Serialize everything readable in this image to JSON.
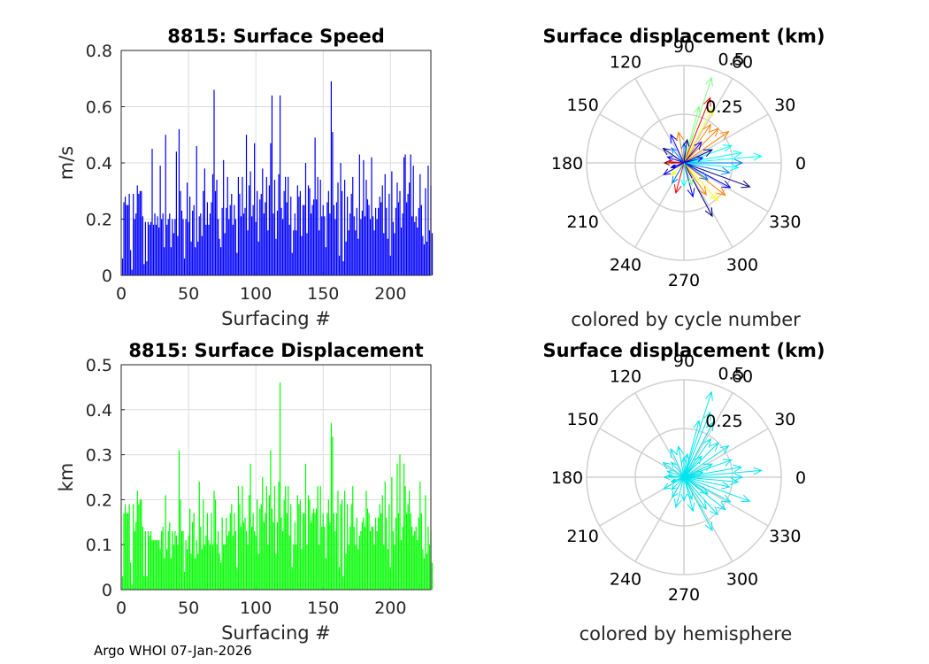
{
  "figure": {
    "footer": "Argo WHOI 07-Jan-2026"
  },
  "chart_data": [
    {
      "id": "speed",
      "type": "bar",
      "title": "8815: Surface Speed",
      "xlabel": "Surfacing #",
      "ylabel": "m/s",
      "xlim": [
        0,
        230
      ],
      "ylim": [
        0,
        0.8
      ],
      "xticks": [
        "0",
        "50",
        "100",
        "150",
        "200"
      ],
      "yticks": [
        "0",
        "0.2",
        "0.4",
        "0.6",
        "0.8"
      ],
      "color": "#0000ff",
      "grid": true,
      "values": [
        0.06,
        0.26,
        0.28,
        0.25,
        0.25,
        0.29,
        0.09,
        0.02,
        0.29,
        0.2,
        0.22,
        0.32,
        0.29,
        0.3,
        0.3,
        0.21,
        0.04,
        0.19,
        0.05,
        0.19,
        0.18,
        0.19,
        0.45,
        0.18,
        0.22,
        0.18,
        0.21,
        0.17,
        0.39,
        0.2,
        0.22,
        0.1,
        0.5,
        0.18,
        0.2,
        0.22,
        0.1,
        0.2,
        0.15,
        0.2,
        0.44,
        0.14,
        0.52,
        0.3,
        0.23,
        0.2,
        0.06,
        0.2,
        0.33,
        0.19,
        0.28,
        0.12,
        0.23,
        0.25,
        0.1,
        0.46,
        0.12,
        0.21,
        0.22,
        0.14,
        0.3,
        0.38,
        0.18,
        0.26,
        0.18,
        0.22,
        0.26,
        0.36,
        0.66,
        0.3,
        0.34,
        0.2,
        0.13,
        0.1,
        0.24,
        0.41,
        0.15,
        0.24,
        0.35,
        0.2,
        0.25,
        0.29,
        0.18,
        0.25,
        0.2,
        0.08,
        0.35,
        0.29,
        0.21,
        0.35,
        0.22,
        0.24,
        0.5,
        0.16,
        0.32,
        0.37,
        0.21,
        0.25,
        0.47,
        0.19,
        0.3,
        0.12,
        0.27,
        0.29,
        0.38,
        0.22,
        0.26,
        0.35,
        0.16,
        0.32,
        0.47,
        0.64,
        0.22,
        0.34,
        0.13,
        0.23,
        0.36,
        0.64,
        0.24,
        0.2,
        0.3,
        0.35,
        0.26,
        0.35,
        0.18,
        0.28,
        0.08,
        0.16,
        0.22,
        0.16,
        0.32,
        0.28,
        0.3,
        0.14,
        0.25,
        0.25,
        0.4,
        0.15,
        0.32,
        0.31,
        0.22,
        0.25,
        0.27,
        0.49,
        0.27,
        0.35,
        0.16,
        0.34,
        0.21,
        0.25,
        0.21,
        0.1,
        0.26,
        0.3,
        0.22,
        0.69,
        0.51,
        0.25,
        0.2,
        0.26,
        0.33,
        0.07,
        0.4,
        0.3,
        0.05,
        0.34,
        0.12,
        0.28,
        0.16,
        0.22,
        0.29,
        0.35,
        0.21,
        0.16,
        0.24,
        0.13,
        0.43,
        0.2,
        0.23,
        0.41,
        0.21,
        0.34,
        0.27,
        0.25,
        0.2,
        0.42,
        0.21,
        0.16,
        0.24,
        0.2,
        0.24,
        0.28,
        0.26,
        0.32,
        0.15,
        0.36,
        0.24,
        0.13,
        0.29,
        0.07,
        0.37,
        0.19,
        0.15,
        0.24,
        0.33,
        0.26,
        0.3,
        0.17,
        0.22,
        0.42,
        0.43,
        0.26,
        0.29,
        0.33,
        0.43,
        0.21,
        0.39,
        0.19,
        0.21,
        0.17,
        0.24,
        0.36,
        0.25,
        0.14,
        0.11,
        0.31,
        0.12,
        0.39,
        0.16,
        0.32,
        0.15
      ]
    },
    {
      "id": "displacement",
      "type": "bar",
      "title": "8815: Surface Displacement",
      "xlabel": "Surfacing #",
      "ylabel": "km",
      "xlim": [
        0,
        230
      ],
      "ylim": [
        0,
        0.5
      ],
      "xticks": [
        "0",
        "50",
        "100",
        "150",
        "200"
      ],
      "yticks": [
        "0",
        "0.1",
        "0.2",
        "0.3",
        "0.4",
        "0.5"
      ],
      "color": "#00ff00",
      "grid": true,
      "values": [
        0.03,
        0.17,
        0.19,
        0.17,
        0.17,
        0.19,
        0.06,
        0.01,
        0.19,
        0.13,
        0.15,
        0.22,
        0.19,
        0.2,
        0.2,
        0.14,
        0.03,
        0.13,
        0.03,
        0.13,
        0.12,
        0.13,
        0.11,
        0.11,
        0.11,
        0.11,
        0.11,
        0.11,
        0.09,
        0.13,
        0.14,
        0.07,
        0.21,
        0.09,
        0.13,
        0.15,
        0.07,
        0.13,
        0.1,
        0.13,
        0.12,
        0.1,
        0.31,
        0.2,
        0.13,
        0.13,
        0.04,
        0.11,
        0.09,
        0.12,
        0.18,
        0.08,
        0.15,
        0.17,
        0.07,
        0.11,
        0.08,
        0.24,
        0.14,
        0.09,
        0.2,
        0.1,
        0.12,
        0.17,
        0.11,
        0.1,
        0.17,
        0.1,
        0.22,
        0.2,
        0.1,
        0.13,
        0.08,
        0.06,
        0.16,
        0.1,
        0.1,
        0.16,
        0.12,
        0.13,
        0.17,
        0.19,
        0.12,
        0.17,
        0.13,
        0.05,
        0.23,
        0.19,
        0.14,
        0.23,
        0.15,
        0.16,
        0.13,
        0.1,
        0.21,
        0.28,
        0.14,
        0.17,
        0.13,
        0.12,
        0.2,
        0.08,
        0.18,
        0.19,
        0.25,
        0.15,
        0.17,
        0.23,
        0.1,
        0.21,
        0.31,
        0.18,
        0.15,
        0.23,
        0.08,
        0.15,
        0.24,
        0.46,
        0.16,
        0.13,
        0.2,
        0.23,
        0.17,
        0.23,
        0.12,
        0.19,
        0.05,
        0.1,
        0.15,
        0.1,
        0.21,
        0.19,
        0.2,
        0.09,
        0.17,
        0.17,
        0.28,
        0.1,
        0.21,
        0.2,
        0.15,
        0.17,
        0.18,
        0.17,
        0.18,
        0.23,
        0.1,
        0.23,
        0.14,
        0.17,
        0.14,
        0.07,
        0.17,
        0.2,
        0.15,
        0.37,
        0.34,
        0.17,
        0.13,
        0.17,
        0.22,
        0.05,
        0.19,
        0.2,
        0.03,
        0.22,
        0.08,
        0.19,
        0.1,
        0.14,
        0.19,
        0.23,
        0.14,
        0.1,
        0.16,
        0.09,
        0.12,
        0.13,
        0.15,
        0.16,
        0.14,
        0.22,
        0.18,
        0.17,
        0.13,
        0.14,
        0.14,
        0.1,
        0.16,
        0.13,
        0.16,
        0.19,
        0.17,
        0.21,
        0.1,
        0.24,
        0.16,
        0.09,
        0.19,
        0.05,
        0.25,
        0.13,
        0.1,
        0.16,
        0.28,
        0.17,
        0.3,
        0.11,
        0.14,
        0.28,
        0.23,
        0.17,
        0.19,
        0.22,
        0.17,
        0.14,
        0.12,
        0.13,
        0.14,
        0.11,
        0.16,
        0.24,
        0.17,
        0.09,
        0.07,
        0.21,
        0.08,
        0.14,
        0.1,
        0.13,
        0.06
      ]
    },
    {
      "id": "polar_cycle",
      "type": "polar",
      "title": "Surface displacement (km)",
      "subtitle": "colored by cycle number",
      "rmax": 0.5,
      "rticks": [
        "0.25",
        "0.5"
      ],
      "angle_labels": [
        "0",
        "30",
        "60",
        "90",
        "120",
        "150",
        "180",
        "210",
        "240",
        "270",
        "300",
        "330"
      ],
      "colors": [
        "#00007f",
        "#0000ff",
        "#007fff",
        "#00ffff",
        "#7fff7f",
        "#ffff00",
        "#ff7f00",
        "#ff0000",
        "#7f0000"
      ],
      "vectors": [
        {
          "deg": 72,
          "r": 0.46,
          "c": 4
        },
        {
          "deg": 68,
          "r": 0.36,
          "c": 7
        },
        {
          "deg": 62,
          "r": 0.32,
          "c": 5
        },
        {
          "deg": 75,
          "r": 0.3,
          "c": 4
        },
        {
          "deg": 55,
          "r": 0.24,
          "c": 6
        },
        {
          "deg": 45,
          "r": 0.25,
          "c": 6
        },
        {
          "deg": 35,
          "r": 0.28,
          "c": 6
        },
        {
          "deg": 20,
          "r": 0.26,
          "c": 3
        },
        {
          "deg": 10,
          "r": 0.3,
          "c": 3
        },
        {
          "deg": 5,
          "r": 0.4,
          "c": 3
        },
        {
          "deg": 0,
          "r": 0.3,
          "c": 2
        },
        {
          "deg": -5,
          "r": 0.28,
          "c": 3
        },
        {
          "deg": -12,
          "r": 0.24,
          "c": 2
        },
        {
          "deg": -20,
          "r": 0.36,
          "c": 0
        },
        {
          "deg": -28,
          "r": 0.27,
          "c": 1
        },
        {
          "deg": -38,
          "r": 0.27,
          "c": 6
        },
        {
          "deg": -48,
          "r": 0.26,
          "c": 5
        },
        {
          "deg": -55,
          "r": 0.2,
          "c": 6
        },
        {
          "deg": -62,
          "r": 0.31,
          "c": 0
        },
        {
          "deg": -75,
          "r": 0.18,
          "c": 1
        },
        {
          "deg": -90,
          "r": 0.12,
          "c": 3
        },
        {
          "deg": -105,
          "r": 0.16,
          "c": 7
        },
        {
          "deg": -120,
          "r": 0.12,
          "c": 2
        },
        {
          "deg": -135,
          "r": 0.09,
          "c": 5
        },
        {
          "deg": -150,
          "r": 0.12,
          "c": 1
        },
        {
          "deg": 180,
          "r": 0.1,
          "c": 8
        },
        {
          "deg": 175,
          "r": 0.08,
          "c": 7
        },
        {
          "deg": 160,
          "r": 0.09,
          "c": 1
        },
        {
          "deg": 145,
          "r": 0.13,
          "c": 0
        },
        {
          "deg": 130,
          "r": 0.1,
          "c": 2
        },
        {
          "deg": 115,
          "r": 0.16,
          "c": 1
        },
        {
          "deg": 100,
          "r": 0.16,
          "c": 6
        },
        {
          "deg": 90,
          "r": 0.1,
          "c": 2
        },
        {
          "deg": 82,
          "r": 0.12,
          "c": 0
        },
        {
          "deg": 50,
          "r": 0.14,
          "c": 1
        },
        {
          "deg": 25,
          "r": 0.16,
          "c": 0
        },
        {
          "deg": 15,
          "r": 0.1,
          "c": 1
        },
        {
          "deg": -35,
          "r": 0.15,
          "c": 2
        },
        {
          "deg": -70,
          "r": 0.12,
          "c": 4
        },
        {
          "deg": -160,
          "r": 0.07,
          "c": 0
        },
        {
          "deg": 200,
          "r": 0.06,
          "c": 1
        }
      ]
    },
    {
      "id": "polar_hemisphere",
      "type": "polar",
      "title": "Surface displacement (km)",
      "subtitle": "colored by hemisphere",
      "rmax": 0.5,
      "rticks": [
        "0.25",
        "0.5"
      ],
      "angle_labels": [
        "0",
        "30",
        "60",
        "90",
        "120",
        "150",
        "180",
        "210",
        "240",
        "270",
        "300",
        "330"
      ],
      "colors": [
        "#00e5ee"
      ],
      "vectors": [
        {
          "deg": 72,
          "r": 0.46,
          "c": 0
        },
        {
          "deg": 68,
          "r": 0.36,
          "c": 0
        },
        {
          "deg": 62,
          "r": 0.32,
          "c": 0
        },
        {
          "deg": 75,
          "r": 0.3,
          "c": 0
        },
        {
          "deg": 55,
          "r": 0.24,
          "c": 0
        },
        {
          "deg": 45,
          "r": 0.25,
          "c": 0
        },
        {
          "deg": 35,
          "r": 0.28,
          "c": 0
        },
        {
          "deg": 20,
          "r": 0.26,
          "c": 0
        },
        {
          "deg": 10,
          "r": 0.3,
          "c": 0
        },
        {
          "deg": 5,
          "r": 0.4,
          "c": 0
        },
        {
          "deg": 0,
          "r": 0.3,
          "c": 0
        },
        {
          "deg": -5,
          "r": 0.28,
          "c": 0
        },
        {
          "deg": -12,
          "r": 0.24,
          "c": 0
        },
        {
          "deg": -20,
          "r": 0.36,
          "c": 0
        },
        {
          "deg": -28,
          "r": 0.27,
          "c": 0
        },
        {
          "deg": -38,
          "r": 0.27,
          "c": 0
        },
        {
          "deg": -48,
          "r": 0.26,
          "c": 0
        },
        {
          "deg": -55,
          "r": 0.2,
          "c": 0
        },
        {
          "deg": -62,
          "r": 0.31,
          "c": 0
        },
        {
          "deg": -75,
          "r": 0.18,
          "c": 0
        },
        {
          "deg": -90,
          "r": 0.12,
          "c": 0
        },
        {
          "deg": -105,
          "r": 0.16,
          "c": 0
        },
        {
          "deg": -120,
          "r": 0.12,
          "c": 0
        },
        {
          "deg": -135,
          "r": 0.09,
          "c": 0
        },
        {
          "deg": -150,
          "r": 0.12,
          "c": 0
        },
        {
          "deg": 180,
          "r": 0.1,
          "c": 0
        },
        {
          "deg": 175,
          "r": 0.08,
          "c": 0
        },
        {
          "deg": 160,
          "r": 0.09,
          "c": 0
        },
        {
          "deg": 145,
          "r": 0.13,
          "c": 0
        },
        {
          "deg": 130,
          "r": 0.1,
          "c": 0
        },
        {
          "deg": 115,
          "r": 0.16,
          "c": 0
        },
        {
          "deg": 100,
          "r": 0.16,
          "c": 0
        },
        {
          "deg": 90,
          "r": 0.1,
          "c": 0
        },
        {
          "deg": 82,
          "r": 0.12,
          "c": 0
        },
        {
          "deg": 50,
          "r": 0.14,
          "c": 0
        },
        {
          "deg": 25,
          "r": 0.16,
          "c": 0
        },
        {
          "deg": 15,
          "r": 0.1,
          "c": 0
        },
        {
          "deg": -35,
          "r": 0.15,
          "c": 0
        },
        {
          "deg": -70,
          "r": 0.12,
          "c": 0
        },
        {
          "deg": -160,
          "r": 0.07,
          "c": 0
        },
        {
          "deg": 200,
          "r": 0.06,
          "c": 0
        }
      ]
    }
  ]
}
